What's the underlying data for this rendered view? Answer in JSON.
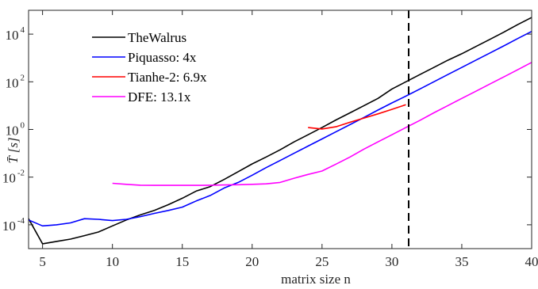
{
  "chart_data": {
    "type": "line",
    "xlabel": "matrix size n",
    "ylabel": "T̄ [s]",
    "xlim": [
      4,
      40
    ],
    "ylim": [
      1e-05,
      100000
    ],
    "yscale": "log",
    "xticks": [
      5,
      10,
      15,
      20,
      25,
      30,
      35,
      40
    ],
    "yticks": [
      {
        "value": 0.0001,
        "base": "10",
        "exp": "-4"
      },
      {
        "value": 0.01,
        "base": "10",
        "exp": "-2"
      },
      {
        "value": 1,
        "base": "10",
        "exp": "0"
      },
      {
        "value": 100,
        "base": "10",
        "exp": "2"
      },
      {
        "value": 10000,
        "base": "10",
        "exp": "4"
      }
    ],
    "grid": false,
    "legend_position": "top-left",
    "vline": {
      "x": 31.2,
      "style": "dashed",
      "color": "#000000"
    },
    "series": [
      {
        "name": "TheWalrus",
        "color": "#000000",
        "x": [
          4,
          5,
          6,
          7,
          8,
          9,
          10,
          11,
          12,
          13,
          14,
          15,
          16,
          17,
          18,
          19,
          20,
          21,
          22,
          23,
          24,
          25,
          26,
          27,
          28,
          29,
          30,
          31,
          32,
          33,
          34,
          35,
          36,
          37,
          38,
          39,
          40
        ],
        "y": [
          0.00018,
          1.6e-05,
          2e-05,
          2.5e-05,
          3.5e-05,
          5e-05,
          9e-05,
          0.00016,
          0.00026,
          0.0004,
          0.0007,
          0.0013,
          0.0026,
          0.004,
          0.008,
          0.017,
          0.036,
          0.07,
          0.14,
          0.3,
          0.6,
          1.2,
          2.5,
          5,
          10,
          20,
          50,
          100,
          200,
          400,
          800,
          1500,
          3000,
          6000,
          12000,
          25000,
          50000
        ]
      },
      {
        "name": "Piquasso: 4x",
        "color": "#0000ff",
        "x": [
          4,
          5,
          6,
          7,
          8,
          9,
          10,
          11,
          12,
          13,
          14,
          15,
          16,
          17,
          18,
          19,
          20,
          21,
          22,
          23,
          24,
          25,
          26,
          27,
          28,
          29,
          30,
          31,
          32,
          33,
          34,
          35,
          36,
          37,
          38,
          39,
          40
        ],
        "y": [
          0.00016,
          9e-05,
          0.0001,
          0.00012,
          0.00018,
          0.00017,
          0.00015,
          0.00017,
          0.00022,
          0.0003,
          0.0004,
          0.00055,
          0.001,
          0.0017,
          0.0035,
          0.006,
          0.012,
          0.025,
          0.05,
          0.1,
          0.2,
          0.4,
          0.8,
          1.6,
          3.2,
          6.5,
          13,
          25,
          50,
          100,
          200,
          400,
          800,
          1600,
          3200,
          6500,
          13000
        ]
      },
      {
        "name": "Tianhe-2: 6.9x",
        "color": "#ff0000",
        "x": [
          24,
          25,
          26,
          27,
          28,
          29,
          30,
          31
        ],
        "y": [
          1.2,
          1.05,
          1.3,
          2,
          3,
          4.5,
          7,
          11
        ]
      },
      {
        "name": "DFE: 13.1x",
        "color": "#ff00ff",
        "x": [
          10,
          11,
          12,
          13,
          14,
          15,
          16,
          17,
          18,
          19,
          20,
          21,
          22,
          23,
          24,
          25,
          26,
          27,
          28,
          29,
          30,
          31,
          32,
          33,
          34,
          35,
          36,
          37,
          38,
          39,
          40
        ],
        "y": [
          0.0055,
          0.005,
          0.0046,
          0.0045,
          0.0045,
          0.0045,
          0.0045,
          0.0046,
          0.0047,
          0.0048,
          0.005,
          0.0052,
          0.006,
          0.009,
          0.013,
          0.018,
          0.035,
          0.07,
          0.15,
          0.3,
          0.6,
          1.2,
          2.4,
          5,
          10,
          20,
          40,
          80,
          160,
          320,
          650
        ]
      }
    ]
  }
}
